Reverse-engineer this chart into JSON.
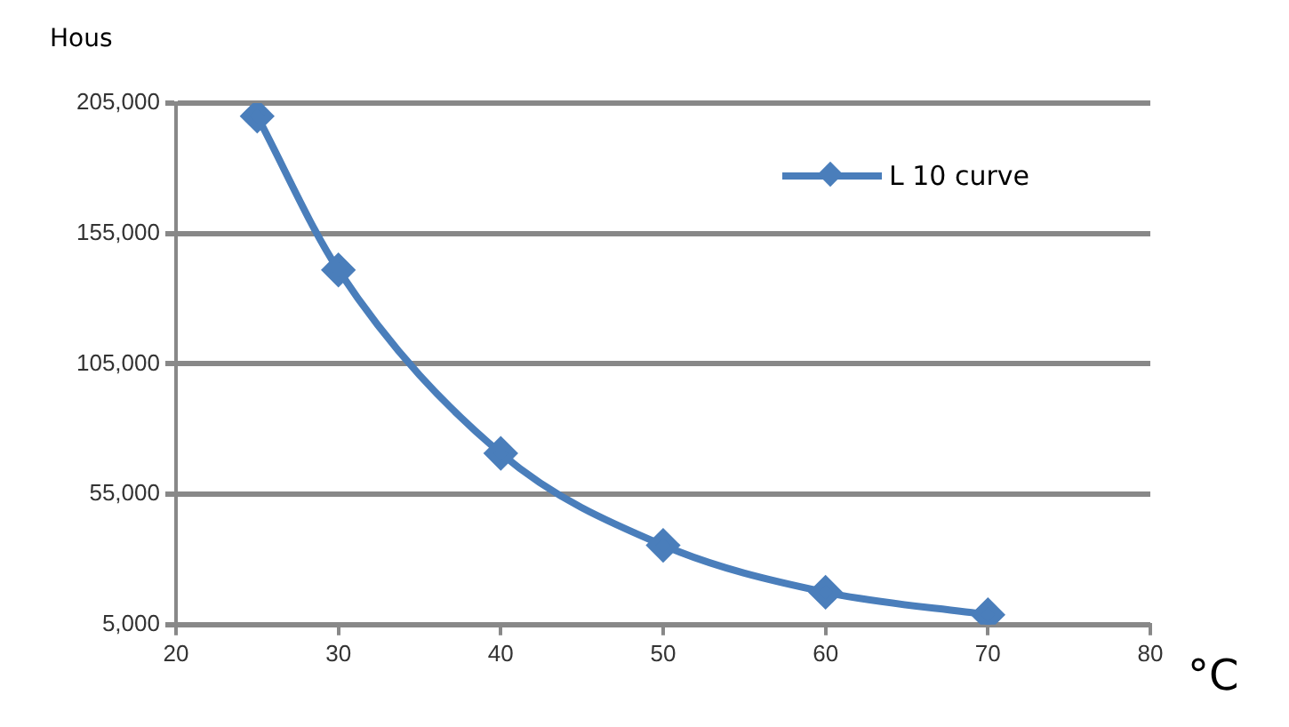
{
  "chart_data": {
    "type": "line",
    "xlabel": "°C",
    "ylabel": "Hous",
    "x": [
      25,
      30,
      40,
      50,
      60,
      70
    ],
    "series": [
      {
        "name": "L 10 curve",
        "color": "#4a7ebb",
        "values": [
          200000,
          141000,
          70700,
          35400,
          17400,
          8800
        ]
      }
    ],
    "xlim": [
      20,
      80
    ],
    "xticks": [
      20,
      30,
      40,
      50,
      60,
      70,
      80
    ],
    "ylim": [
      5000,
      205000
    ],
    "yticks": [
      {
        "value": 5000,
        "label": "5,000"
      },
      {
        "value": 55000,
        "label": "55,000"
      },
      {
        "value": 105000,
        "label": "105,000"
      },
      {
        "value": 155000,
        "label": "155,000"
      },
      {
        "value": 205000,
        "label": "205,000"
      }
    ],
    "grid": "y",
    "legend": "top right",
    "marker": "diamond",
    "line_style": "solid"
  }
}
